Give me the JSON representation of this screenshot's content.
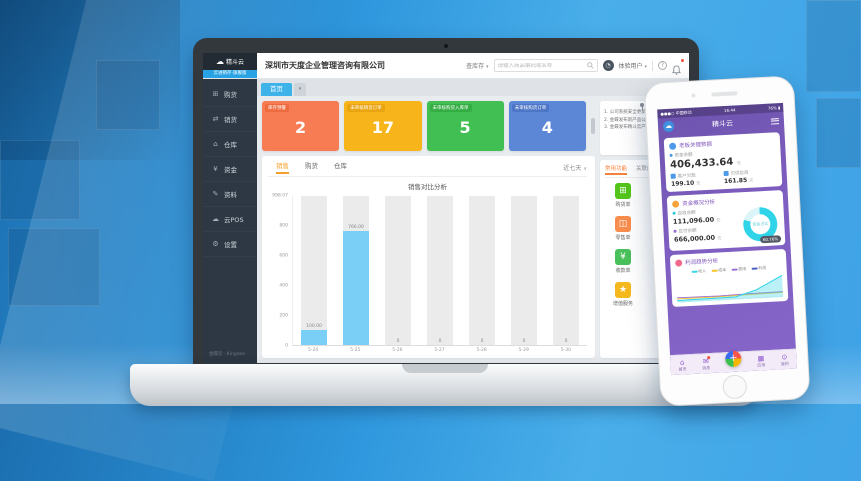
{
  "window": {
    "company": "深圳市天度企业管理咨询有限公司"
  },
  "header": {
    "search_category": "查库存",
    "search_placeholder": "请输入商品编码或名称",
    "user": "体验用户"
  },
  "logo": {
    "name": "精斗云",
    "subtitle": "云进销存·旗舰版"
  },
  "sidebar": {
    "items": [
      {
        "key": "purchase",
        "label": "购货",
        "icon": "cart-icon",
        "glyph": "⊞"
      },
      {
        "key": "sales",
        "label": "销货",
        "icon": "truck-icon",
        "glyph": "⇄"
      },
      {
        "key": "warehouse",
        "label": "仓库",
        "icon": "warehouse-icon",
        "glyph": "⌂"
      },
      {
        "key": "funds",
        "label": "资金",
        "icon": "money-icon",
        "glyph": "¥"
      },
      {
        "key": "data",
        "label": "资料",
        "icon": "pencil-icon",
        "glyph": "✎"
      },
      {
        "key": "cloud-pos",
        "label": "云POS",
        "icon": "pos-icon",
        "glyph": "☁"
      },
      {
        "key": "settings",
        "label": "设置",
        "icon": "gear-icon",
        "glyph": "⚙"
      }
    ],
    "footer": "金蝶云 · Kingdee"
  },
  "tabstrip": {
    "active": "首页"
  },
  "summary_cards": [
    {
      "key": "inventory-alert",
      "label": "库存预警",
      "value": "2",
      "color": "#f87c53",
      "label_bg": "#ee6a3f"
    },
    {
      "key": "unaudited-sales-orders",
      "label": "未审核销货订单",
      "value": "17",
      "color": "#f7b51b",
      "label_bg": "#e9a410"
    },
    {
      "key": "unaudited-purchase-inbound",
      "label": "未审核购货入库单",
      "value": "5",
      "color": "#41bf52",
      "label_bg": "#34ad44"
    },
    {
      "key": "unaudited-purchase-orders",
      "label": "未审核购货订单",
      "value": "4",
      "color": "#5c87d6",
      "label_bg": "#4d76c7"
    }
  ],
  "announcements": {
    "items": [
      "1. 公司系统安全更新通知",
      "2. 金蝶发布新产品公告",
      "3. 金蝶发布精斗云产品"
    ]
  },
  "chart_data": {
    "type": "bar",
    "title": "销售对比分析",
    "tabs": [
      "销售",
      "购货",
      "仓库"
    ],
    "active_tab": "销售",
    "range_filter": "近七天",
    "categories": [
      "5-24",
      "5-25",
      "5-26",
      "5-27",
      "5-28",
      "5-29",
      "5-30"
    ],
    "values": [
      100,
      766,
      0,
      0,
      0,
      0,
      0
    ],
    "value_labels": [
      "100.00",
      "766.00",
      "0",
      "0",
      "0",
      "0",
      "0"
    ],
    "ylim": [
      0,
      998.07
    ],
    "yticks": [
      {
        "label": "998.07",
        "value": 998.07
      },
      {
        "label": "800",
        "value": 800
      },
      {
        "label": "600",
        "value": 600
      },
      {
        "label": "400",
        "value": 400
      },
      {
        "label": "200",
        "value": 200
      },
      {
        "label": "0",
        "value": 0
      }
    ],
    "bar_color": "#79cff5",
    "track_color": "#ebebeb",
    "xlabel": "",
    "ylabel": ""
  },
  "quick_panel": {
    "tabs": [
      "常用功能",
      "关联应用"
    ],
    "active_tab": "常用功能",
    "items": [
      {
        "key": "purchase-order",
        "label": "购货单",
        "icon": "cart-icon",
        "glyph": "⊞",
        "color": "#52c41a"
      },
      {
        "key": "sales-order",
        "label": "销货单",
        "icon": "sell-icon",
        "glyph": "⊟",
        "color": "#f7b500"
      },
      {
        "key": "retail-order",
        "label": "零售单",
        "icon": "retail-icon",
        "glyph": "◫",
        "color": "#f88c4d"
      },
      {
        "key": "transfer-order",
        "label": "调拨单",
        "icon": "transfer-icon",
        "glyph": "⇄",
        "color": "#4aa3e8"
      },
      {
        "key": "receipt-order",
        "label": "收款单",
        "icon": "receive-icon",
        "glyph": "¥",
        "color": "#49c05a"
      },
      {
        "key": "payment-order",
        "label": "付款单",
        "icon": "payment-icon",
        "glyph": "¥",
        "color": "#f2694a"
      },
      {
        "key": "value-added",
        "label": "增值服务",
        "icon": "star-icon",
        "glyph": "★",
        "color": "#f5b91e"
      }
    ]
  },
  "phone": {
    "status": {
      "carrier": "中国移动",
      "time": "16:44",
      "battery": "76%"
    },
    "nav_title": "精斗云",
    "cards": [
      {
        "title": "老板关键数据",
        "main_label": "资金余额",
        "main_value": "406,433.64",
        "unit": "元",
        "cols": [
          {
            "label": "客户欠款",
            "value": "199.10"
          },
          {
            "label": "欠供应商",
            "value": "161.85"
          }
        ]
      },
      {
        "title": "资金概况分析",
        "rows": [
          {
            "label": "应收余额",
            "value": "111,096.00"
          },
          {
            "label": "应付余额",
            "value": "666,000.00"
          }
        ],
        "donut_center": "资金占比",
        "donut_pct": "60.76%"
      },
      {
        "title": "利润趋势分析",
        "legend": [
          {
            "label": "收入",
            "color": "#3ad6e8"
          },
          {
            "label": "成本",
            "color": "#f7c32a"
          },
          {
            "label": "费用",
            "color": "#9b6fd0"
          },
          {
            "label": "利润",
            "color": "#4a5fc1"
          }
        ]
      }
    ],
    "tabbar": [
      {
        "key": "home",
        "label": "首页",
        "glyph": "⌂"
      },
      {
        "key": "messages",
        "label": "消息",
        "glyph": "✉"
      },
      {
        "key": "add",
        "label": "+",
        "glyph": "+"
      },
      {
        "key": "apps",
        "label": "应用",
        "glyph": "▦"
      },
      {
        "key": "mine",
        "label": "我的",
        "glyph": "⊙"
      }
    ]
  }
}
